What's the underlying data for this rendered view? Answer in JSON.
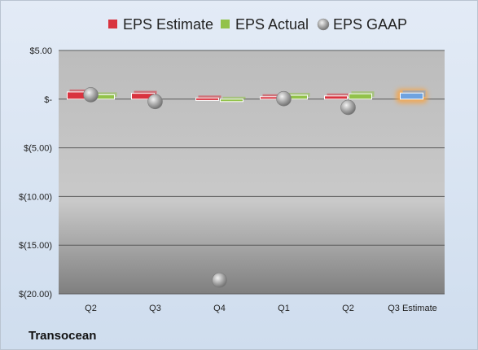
{
  "chart_data": {
    "type": "bar",
    "categories": [
      "Q2",
      "Q3",
      "Q4",
      "Q1",
      "Q2",
      "Q3 Estimate"
    ],
    "series": [
      {
        "name": "EPS Estimate",
        "kind": "bar",
        "color": "#d9333f",
        "values": [
          0.74,
          0.6,
          0.12,
          0.25,
          0.33,
          null
        ]
      },
      {
        "name": "EPS Actual",
        "kind": "bar",
        "color": "#92c24a",
        "values": [
          0.45,
          null,
          -0.05,
          0.4,
          0.55,
          null
        ]
      },
      {
        "name": "EPS Estimate",
        "kind": "estimate-bar",
        "color": "#6fa3e0",
        "glow": "#f5a54a",
        "values": [
          null,
          null,
          null,
          null,
          null,
          0.63
        ]
      },
      {
        "name": "EPS GAAP",
        "kind": "marker",
        "color": "#9a9a9a",
        "values": [
          0.45,
          -0.25,
          -18.6,
          0.05,
          -0.85,
          null
        ]
      }
    ],
    "legend": [
      "EPS Estimate",
      "EPS Actual",
      "EPS GAAP"
    ],
    "legend_position": "top",
    "yticks": [
      5,
      0,
      -5,
      -10,
      -15,
      -20
    ],
    "ytick_labels": [
      "$5.00",
      "$-",
      "$(5.00)",
      "$(10.00)",
      "$(15.00)",
      "$(20.00)"
    ],
    "ylim": [
      -20,
      5
    ],
    "grid": true
  },
  "company": "Transocean"
}
